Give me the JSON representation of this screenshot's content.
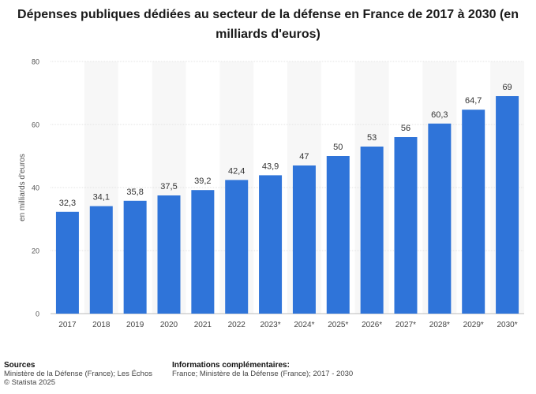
{
  "chart_data": {
    "type": "bar",
    "title": "Dépenses publiques dédiées au secteur de la défense en France de 2017 à 2030 (en milliards d'euros)",
    "ylabel": "en milliards d'euros",
    "xlabel": "",
    "ylim": [
      0,
      80
    ],
    "yticks": [
      0,
      20,
      40,
      60,
      80
    ],
    "grid": true,
    "bar_color": "#2f74d9",
    "categories": [
      "2017",
      "2018",
      "2019",
      "2020",
      "2021",
      "2022",
      "2023*",
      "2024*",
      "2025*",
      "2026*",
      "2027*",
      "2028*",
      "2029*",
      "2030*"
    ],
    "values": [
      32.3,
      34.1,
      35.8,
      37.5,
      39.2,
      42.4,
      43.9,
      47,
      50,
      53,
      56,
      60.3,
      64.7,
      69
    ],
    "value_labels": [
      "32,3",
      "34,1",
      "35,8",
      "37,5",
      "39,2",
      "42,4",
      "43,9",
      "47",
      "50",
      "53",
      "56",
      "60,3",
      "64,7",
      "69"
    ]
  },
  "footer": {
    "sources_heading": "Sources",
    "sources_text": "Ministère de la Défense (France); Les Échos",
    "copyright": "© Statista 2025",
    "info_heading": "Informations complémentaires:",
    "info_text": "France; Ministère de la Défense (France); 2017 - 2030"
  }
}
